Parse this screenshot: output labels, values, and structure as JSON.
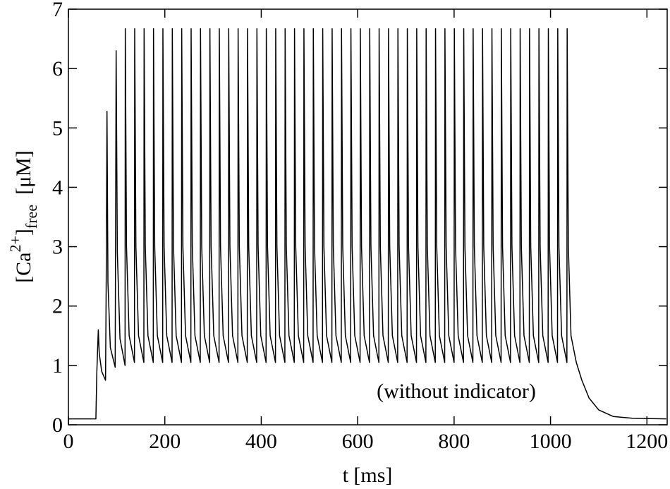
{
  "chart_data": {
    "type": "line",
    "x_label": "t [ms]",
    "y_label": {
      "open": "[Ca",
      "sup": "2+",
      "close": "]",
      "sub": "free",
      "unit": "[μM]"
    },
    "annotation": "(without indicator)",
    "xlim": [
      0,
      1242
    ],
    "ylim": [
      0,
      7
    ],
    "xticks": [
      0,
      200,
      400,
      600,
      800,
      1000,
      1200
    ],
    "yticks": [
      0,
      1,
      2,
      3,
      4,
      5,
      6,
      7
    ],
    "x": [
      0,
      57,
      59,
      62,
      64,
      69,
      77,
      78.5,
      80,
      82,
      87,
      97,
      99,
      101.5,
      107,
      117.5,
      118,
      120.5,
      126,
      137,
      137.5,
      140,
      145.5,
      156.5,
      157,
      159.5,
      165,
      176,
      176.5,
      179,
      184.5,
      195.5,
      196,
      198.5,
      204,
      215,
      215.5,
      218,
      223.5,
      234.5,
      235,
      237.5,
      243,
      254,
      254.5,
      257,
      262.5,
      273.5,
      274,
      276.5,
      282,
      293,
      293.5,
      296,
      301.5,
      312.5,
      313,
      315.5,
      321,
      332,
      332.5,
      335,
      340.5,
      351.5,
      352,
      354.5,
      360,
      371,
      371.5,
      374,
      379.5,
      390.5,
      391,
      393.5,
      399,
      410,
      410.5,
      413,
      418.5,
      429.5,
      430,
      432.5,
      438,
      449,
      449.5,
      452,
      457.5,
      468.5,
      469,
      471.5,
      477,
      488,
      488.5,
      491,
      496.5,
      507.5,
      508,
      510.5,
      516,
      527,
      527.5,
      530,
      535.5,
      546.5,
      547,
      549.5,
      555,
      566,
      566.5,
      569,
      574.5,
      585.5,
      586,
      588.5,
      594,
      605,
      605.5,
      608,
      613.5,
      624.5,
      625,
      627.5,
      633,
      644,
      644.5,
      647,
      652.5,
      663.5,
      664,
      666.5,
      672,
      683,
      683.5,
      686,
      691.5,
      702.5,
      703,
      705.5,
      711,
      722,
      722.5,
      725,
      730.5,
      741.5,
      742,
      744.5,
      750,
      761,
      761.5,
      764,
      769.5,
      780.5,
      781,
      783.5,
      789,
      800,
      800.5,
      803,
      808.5,
      819.5,
      820,
      822.5,
      828,
      839,
      839.5,
      842,
      847.5,
      858.5,
      859,
      861.5,
      867,
      878,
      878.5,
      881,
      886.5,
      897.5,
      898,
      900.5,
      906,
      917,
      917.5,
      920,
      925.5,
      936.5,
      937,
      939.5,
      945,
      956,
      956.5,
      959,
      964.5,
      975.5,
      976,
      978.5,
      984,
      995,
      995.5,
      998,
      1003.5,
      1014.5,
      1015,
      1017.5,
      1023,
      1034,
      1034.5,
      1037,
      1042.5,
      1053.5,
      1065,
      1080,
      1100,
      1130,
      1170,
      1240
    ],
    "series": [
      {
        "color": "#000000",
        "values": [
          0.1,
          0.1,
          0.9,
          1.6,
          1.2,
          0.9,
          0.75,
          2.5,
          5.28,
          2.4,
          1.3,
          0.97,
          6.3,
          2.9,
          1.45,
          1.0,
          6.67,
          3.0,
          1.5,
          1.05,
          6.67,
          3.0,
          1.5,
          1.05,
          6.67,
          3.0,
          1.5,
          1.05,
          6.67,
          3.0,
          1.5,
          1.05,
          6.67,
          3.0,
          1.5,
          1.05,
          6.67,
          3.0,
          1.5,
          1.05,
          6.67,
          3.0,
          1.5,
          1.05,
          6.67,
          3.0,
          1.5,
          1.05,
          6.67,
          3.0,
          1.5,
          1.05,
          6.67,
          3.0,
          1.5,
          1.05,
          6.67,
          3.0,
          1.5,
          1.05,
          6.67,
          3.0,
          1.5,
          1.05,
          6.67,
          3.0,
          1.5,
          1.05,
          6.67,
          3.0,
          1.5,
          1.05,
          6.67,
          3.0,
          1.5,
          1.05,
          6.67,
          3.0,
          1.5,
          1.05,
          6.67,
          3.0,
          1.5,
          1.05,
          6.67,
          3.0,
          1.5,
          1.05,
          6.67,
          3.0,
          1.5,
          1.05,
          6.67,
          3.0,
          1.5,
          1.05,
          6.67,
          3.0,
          1.5,
          1.05,
          6.67,
          3.0,
          1.5,
          1.05,
          6.67,
          3.0,
          1.5,
          1.05,
          6.67,
          3.0,
          1.5,
          1.05,
          6.67,
          3.0,
          1.5,
          1.05,
          6.67,
          3.0,
          1.5,
          1.05,
          6.67,
          3.0,
          1.5,
          1.05,
          6.67,
          3.0,
          1.5,
          1.05,
          6.67,
          3.0,
          1.5,
          1.05,
          6.67,
          3.0,
          1.5,
          1.05,
          6.67,
          3.0,
          1.5,
          1.05,
          6.67,
          3.0,
          1.5,
          1.05,
          6.67,
          3.0,
          1.5,
          1.05,
          6.67,
          3.0,
          1.5,
          1.05,
          6.67,
          3.0,
          1.5,
          1.05,
          6.67,
          3.0,
          1.5,
          1.05,
          6.67,
          3.0,
          1.5,
          1.05,
          6.67,
          3.0,
          1.5,
          1.05,
          6.67,
          3.0,
          1.5,
          1.05,
          6.67,
          3.0,
          1.5,
          1.05,
          6.67,
          3.0,
          1.5,
          1.05,
          6.67,
          3.0,
          1.5,
          1.05,
          6.67,
          3.0,
          1.5,
          1.05,
          6.67,
          3.0,
          1.5,
          1.05,
          6.67,
          3.0,
          1.5,
          1.05,
          6.67,
          3.0,
          1.5,
          1.05,
          6.67,
          3.0,
          1.5,
          1.05,
          6.67,
          3.0,
          1.5,
          1.05,
          0.75,
          0.45,
          0.25,
          0.14,
          0.11,
          0.1
        ]
      }
    ]
  }
}
